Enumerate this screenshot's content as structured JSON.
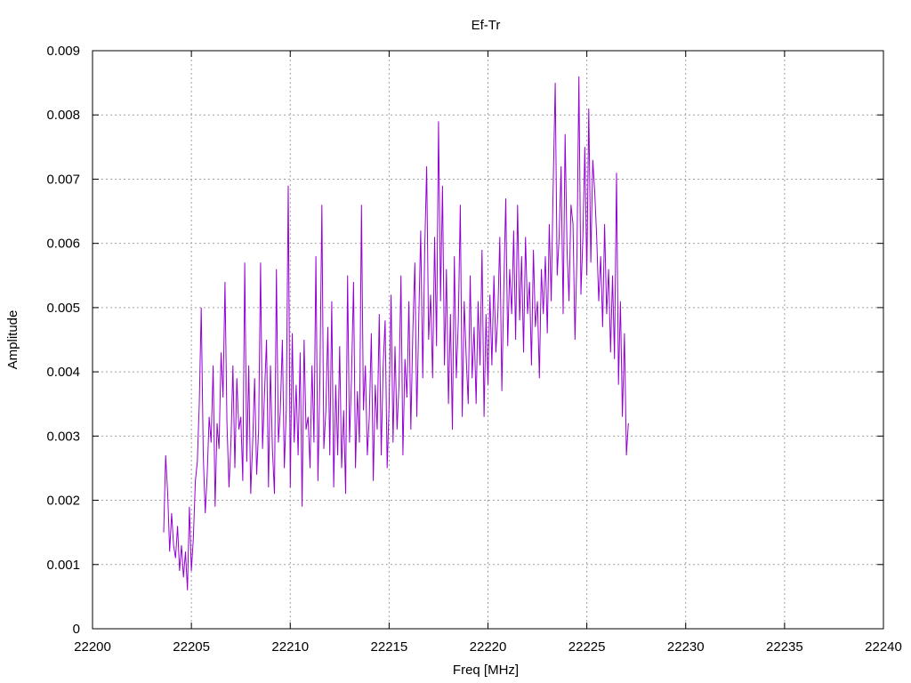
{
  "chart_data": {
    "type": "line",
    "title": "Ef-Tr",
    "xlabel": "Freq [MHz]",
    "ylabel": "Amplitude",
    "xlim": [
      22200,
      22240
    ],
    "ylim": [
      0,
      0.009
    ],
    "x_ticks": [
      "22200",
      "22205",
      "22210",
      "22215",
      "22220",
      "22225",
      "22230",
      "22235",
      "22240"
    ],
    "y_ticks": [
      "0",
      "0.001",
      "0.002",
      "0.003",
      "0.004",
      "0.005",
      "0.006",
      "0.007",
      "0.008",
      "0.009"
    ],
    "grid": true,
    "line_color": "#9400d3",
    "series": [
      {
        "x_start": 22203.6,
        "x_step": 0.1,
        "values": [
          0.0015,
          0.0027,
          0.0021,
          0.0012,
          0.0018,
          0.0013,
          0.0011,
          0.0016,
          0.0009,
          0.0013,
          0.0008,
          0.0012,
          0.0006,
          0.0019,
          0.0009,
          0.0014,
          0.0023,
          0.0026,
          0.0035,
          0.005,
          0.0027,
          0.0018,
          0.0024,
          0.0033,
          0.0029,
          0.0041,
          0.0019,
          0.0032,
          0.0028,
          0.0043,
          0.0036,
          0.0054,
          0.0032,
          0.0022,
          0.0029,
          0.0041,
          0.0025,
          0.0039,
          0.0031,
          0.0033,
          0.0023,
          0.0057,
          0.0026,
          0.0041,
          0.0021,
          0.0029,
          0.0039,
          0.0024,
          0.0031,
          0.0057,
          0.0028,
          0.0037,
          0.0045,
          0.0022,
          0.0041,
          0.0028,
          0.0021,
          0.0056,
          0.0029,
          0.0034,
          0.0045,
          0.0025,
          0.0034,
          0.0069,
          0.0022,
          0.0046,
          0.0029,
          0.0038,
          0.0027,
          0.0043,
          0.0019,
          0.0045,
          0.0031,
          0.0033,
          0.0025,
          0.0041,
          0.0029,
          0.0058,
          0.0023,
          0.0039,
          0.0066,
          0.0028,
          0.0034,
          0.0047,
          0.0027,
          0.0051,
          0.0022,
          0.0038,
          0.0027,
          0.0044,
          0.0025,
          0.0034,
          0.0021,
          0.0055,
          0.0029,
          0.0039,
          0.0054,
          0.0025,
          0.0037,
          0.0029,
          0.0066,
          0.0034,
          0.0041,
          0.0027,
          0.0033,
          0.0046,
          0.0023,
          0.0038,
          0.0031,
          0.0049,
          0.0027,
          0.0041,
          0.0048,
          0.0025,
          0.0035,
          0.0052,
          0.0029,
          0.0044,
          0.0031,
          0.0038,
          0.0055,
          0.0027,
          0.0042,
          0.0036,
          0.0051,
          0.0031,
          0.0046,
          0.0057,
          0.0033,
          0.0048,
          0.0062,
          0.0039,
          0.0059,
          0.0072,
          0.0045,
          0.0052,
          0.0039,
          0.0061,
          0.0044,
          0.0079,
          0.0051,
          0.0069,
          0.0041,
          0.0056,
          0.0035,
          0.0049,
          0.0031,
          0.0058,
          0.0039,
          0.0048,
          0.0066,
          0.0033,
          0.0051,
          0.0042,
          0.0035,
          0.0055,
          0.0039,
          0.0047,
          0.0035,
          0.0051,
          0.0041,
          0.0059,
          0.0033,
          0.0049,
          0.0038,
          0.0052,
          0.0041,
          0.0055,
          0.0043,
          0.0049,
          0.0061,
          0.0037,
          0.0053,
          0.0067,
          0.0044,
          0.0056,
          0.0049,
          0.0062,
          0.0045,
          0.0066,
          0.0048,
          0.0058,
          0.0043,
          0.0061,
          0.0049,
          0.0054,
          0.0041,
          0.0059,
          0.0047,
          0.0051,
          0.0039,
          0.0056,
          0.0049,
          0.0058,
          0.0046,
          0.0063,
          0.0051,
          0.0069,
          0.0085,
          0.0055,
          0.0061,
          0.0072,
          0.0049,
          0.0077,
          0.0059,
          0.0051,
          0.0066,
          0.0063,
          0.0045,
          0.0058,
          0.0086,
          0.0052,
          0.0061,
          0.0075,
          0.0055,
          0.0081,
          0.0057,
          0.0073,
          0.0068,
          0.0061,
          0.0051,
          0.0058,
          0.0047,
          0.0063,
          0.0049,
          0.0056,
          0.0043,
          0.0055,
          0.0042,
          0.0071,
          0.0038,
          0.0051,
          0.0033,
          0.0046,
          0.0027,
          0.0032
        ]
      }
    ]
  }
}
